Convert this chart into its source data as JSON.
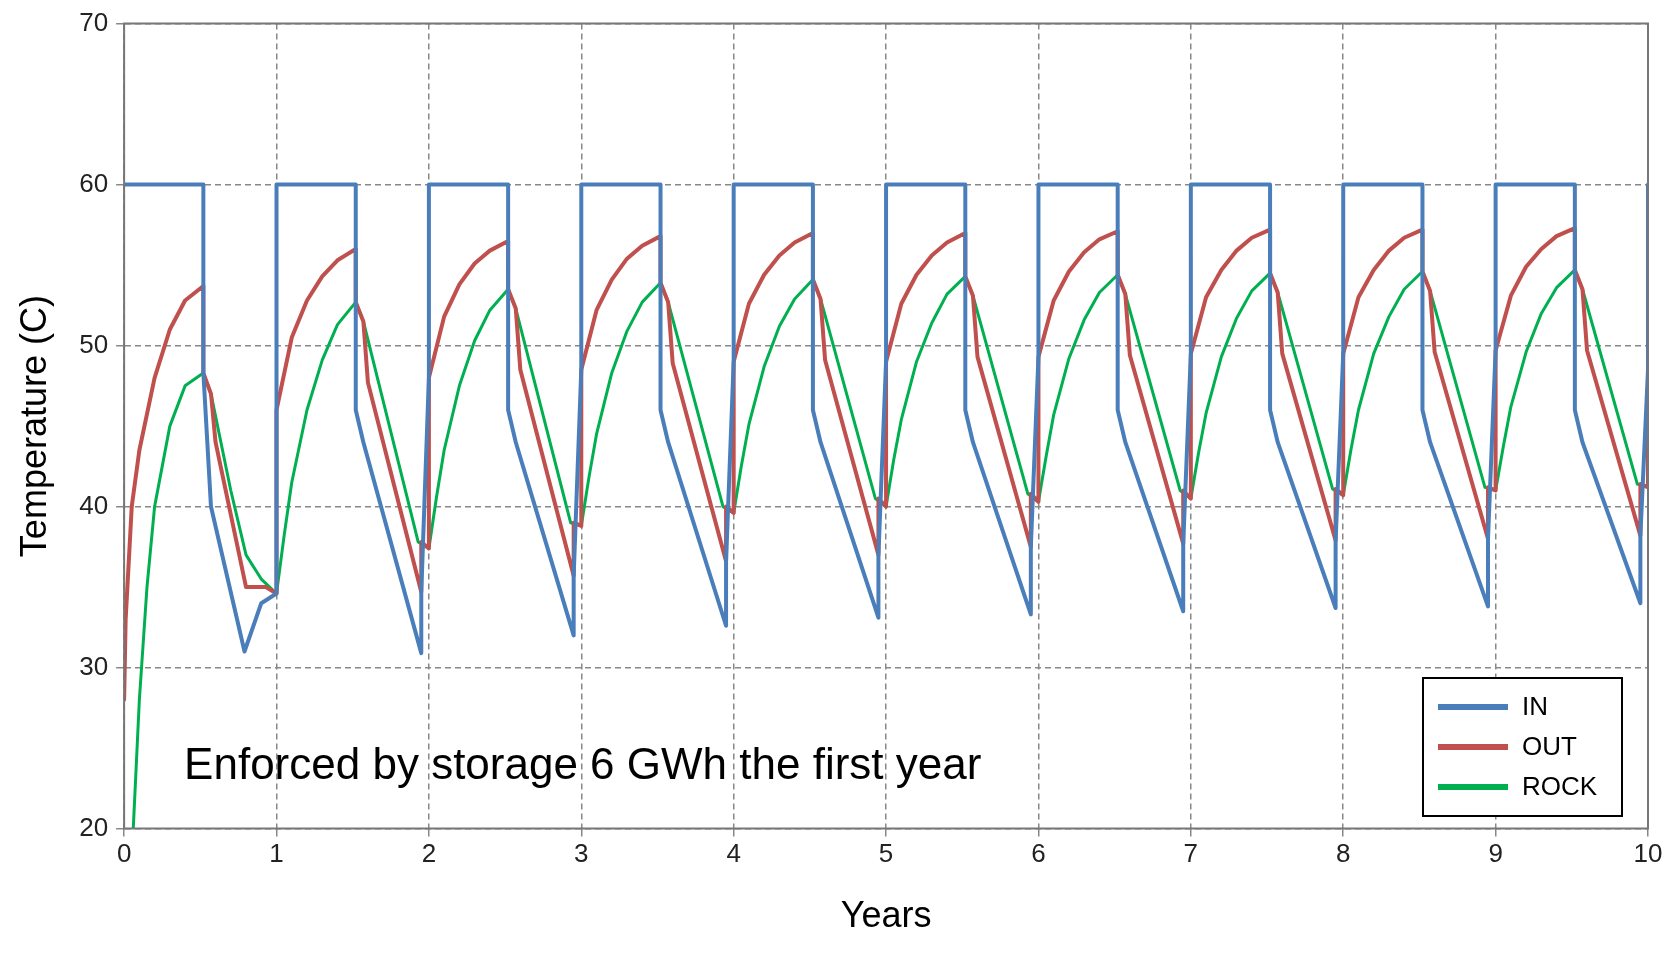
{
  "chart_data": {
    "type": "line",
    "xlabel": "Years",
    "ylabel": "Temperature (C)",
    "annotations": [
      "Enforced by storage 6 GWh the first year"
    ],
    "xlim": [
      0,
      10
    ],
    "xticks": [
      0,
      1,
      2,
      3,
      4,
      5,
      6,
      7,
      8,
      9,
      10
    ],
    "ylim": [
      20,
      70
    ],
    "yticks": [
      20,
      30,
      40,
      50,
      60,
      70
    ],
    "grid": true,
    "legend": "bottom right",
    "marker": "none",
    "series": [
      {
        "name": "IN",
        "color": "#4a7ebb",
        "x": [
          0,
          0.52,
          0.52,
          0.57,
          0.79,
          0.9,
          1,
          1,
          1.52,
          1.52,
          1.57,
          1.95,
          1.95,
          2,
          2,
          2.52,
          2.52,
          2.57,
          2.95,
          2.95,
          3,
          3,
          3.52,
          3.52,
          3.57,
          3.95,
          3.95,
          4,
          4,
          4.52,
          4.52,
          4.57,
          4.95,
          4.95,
          5,
          5,
          5.52,
          5.52,
          5.57,
          5.95,
          5.95,
          6,
          6,
          6.52,
          6.52,
          6.57,
          6.95,
          6.95,
          7,
          7,
          7.52,
          7.52,
          7.57,
          7.95,
          7.95,
          8,
          8,
          8.52,
          8.52,
          8.57,
          8.95,
          8.95,
          9,
          9,
          9.52,
          9.52,
          9.57,
          9.95,
          9.95,
          10,
          10
        ],
        "values": [
          60,
          60,
          48.3,
          40,
          31,
          34,
          34.6,
          60,
          60,
          46,
          44,
          30.9,
          34.7,
          48,
          60,
          60,
          46,
          44,
          32.0,
          35.7,
          48.5,
          60,
          60,
          46,
          44,
          32.6,
          36.6,
          49,
          60,
          60,
          46,
          44,
          33.1,
          37.0,
          49,
          60,
          60,
          46,
          44,
          33.3,
          37.5,
          49.3,
          60,
          60,
          46,
          44,
          33.5,
          37.7,
          49.5,
          60,
          60,
          46,
          44,
          33.7,
          37.9,
          49.5,
          60,
          60,
          46,
          44,
          33.8,
          38.0,
          49.7,
          60,
          60,
          46,
          44,
          34.0,
          38.2,
          48.5,
          60
        ]
      },
      {
        "name": "OUT",
        "color": "#c0504d",
        "x": [
          0,
          0.01,
          0.05,
          0.1,
          0.2,
          0.3,
          0.4,
          0.52,
          0.52,
          0.57,
          0.6,
          0.8,
          0.93,
          1,
          1,
          1.1,
          1.2,
          1.3,
          1.4,
          1.52,
          1.52,
          1.57,
          1.6,
          1.95,
          1.95,
          2,
          2,
          2.1,
          2.2,
          2.3,
          2.4,
          2.52,
          2.52,
          2.57,
          2.6,
          2.95,
          2.95,
          3,
          3,
          3.1,
          3.2,
          3.3,
          3.4,
          3.52,
          3.52,
          3.57,
          3.6,
          3.95,
          3.95,
          4,
          4,
          4.1,
          4.2,
          4.3,
          4.4,
          4.52,
          4.52,
          4.57,
          4.6,
          4.95,
          4.95,
          5,
          5,
          5.1,
          5.2,
          5.3,
          5.4,
          5.52,
          5.52,
          5.57,
          5.6,
          5.95,
          5.95,
          6,
          6,
          6.1,
          6.2,
          6.3,
          6.4,
          6.52,
          6.52,
          6.57,
          6.6,
          6.95,
          6.95,
          7,
          7,
          7.1,
          7.2,
          7.3,
          7.4,
          7.52,
          7.52,
          7.57,
          7.6,
          7.95,
          7.95,
          8,
          8,
          8.1,
          8.2,
          8.3,
          8.4,
          8.52,
          8.52,
          8.57,
          8.6,
          8.95,
          8.95,
          9,
          9,
          9.1,
          9.2,
          9.3,
          9.4,
          9.52,
          9.52,
          9.57,
          9.6,
          9.95,
          9.95,
          10,
          10
        ],
        "values": [
          28,
          33,
          40,
          43.5,
          48,
          51,
          52.8,
          53.7,
          48.3,
          47,
          44,
          35,
          35,
          34.6,
          46,
          50.5,
          52.8,
          54.3,
          55.3,
          56.0,
          52.7,
          51.5,
          47.7,
          34.7,
          37.8,
          37.4,
          48,
          51.8,
          53.8,
          55.1,
          55.9,
          56.5,
          53.5,
          52.3,
          48.5,
          35.7,
          39.0,
          38.8,
          48.5,
          52.2,
          54.1,
          55.4,
          56.2,
          56.8,
          53.9,
          52.7,
          48.9,
          36.6,
          40.0,
          39.6,
          49,
          52.6,
          54.4,
          55.6,
          56.4,
          57.0,
          54.1,
          52.9,
          49.1,
          37.0,
          40.5,
          40.0,
          49,
          52.6,
          54.4,
          55.6,
          56.4,
          57.0,
          54.3,
          53.1,
          49.3,
          37.5,
          40.8,
          40.3,
          49.3,
          52.8,
          54.6,
          55.8,
          56.6,
          57.1,
          54.4,
          53.2,
          49.4,
          37.7,
          41.0,
          40.5,
          49.5,
          53.0,
          54.7,
          55.9,
          56.7,
          57.2,
          54.5,
          53.3,
          49.5,
          37.9,
          41.1,
          40.7,
          49.5,
          53.0,
          54.7,
          55.9,
          56.7,
          57.2,
          54.6,
          53.4,
          49.6,
          38.0,
          41.2,
          41.0,
          49.7,
          53.1,
          54.9,
          56.0,
          56.8,
          57.3,
          54.7,
          53.5,
          49.7,
          38.2,
          41.4,
          41.2,
          48.5
        ]
      },
      {
        "name": "ROCK",
        "color": "#00b050",
        "x": [
          0.06,
          0.1,
          0.15,
          0.2,
          0.3,
          0.4,
          0.52,
          0.57,
          0.7,
          0.8,
          0.9,
          1,
          1.05,
          1.1,
          1.2,
          1.3,
          1.4,
          1.52,
          1.57,
          1.93,
          2,
          2.05,
          2.1,
          2.2,
          2.3,
          2.4,
          2.52,
          2.57,
          2.93,
          3,
          3.05,
          3.1,
          3.2,
          3.3,
          3.4,
          3.52,
          3.57,
          3.93,
          4,
          4.05,
          4.1,
          4.2,
          4.3,
          4.4,
          4.52,
          4.57,
          4.93,
          5,
          5.05,
          5.1,
          5.2,
          5.3,
          5.4,
          5.52,
          5.57,
          5.93,
          6,
          6.05,
          6.1,
          6.2,
          6.3,
          6.4,
          6.52,
          6.57,
          6.93,
          7,
          7.05,
          7.1,
          7.2,
          7.3,
          7.4,
          7.52,
          7.57,
          7.93,
          8,
          8.05,
          8.1,
          8.2,
          8.3,
          8.4,
          8.52,
          8.57,
          8.93,
          9,
          9.05,
          9.1,
          9.2,
          9.3,
          9.4,
          9.52,
          9.57,
          9.93,
          10
        ],
        "values": [
          20,
          28,
          35,
          40,
          45,
          47.5,
          48.3,
          47,
          41,
          37,
          35.5,
          34.6,
          38.2,
          41.5,
          46.0,
          49.1,
          51.3,
          52.7,
          51.5,
          37.8,
          37.4,
          40.6,
          43.5,
          47.5,
          50.3,
          52.2,
          53.5,
          52.3,
          39.0,
          38.8,
          41.8,
          44.5,
          48.3,
          50.9,
          52.7,
          53.9,
          52.7,
          40.0,
          39.6,
          42.5,
          45.1,
          48.7,
          51.2,
          52.9,
          54.1,
          52.9,
          40.5,
          40.0,
          42.9,
          45.4,
          49.0,
          51.4,
          53.2,
          54.3,
          53.1,
          40.8,
          40.3,
          43.1,
          45.7,
          49.2,
          51.6,
          53.3,
          54.4,
          53.2,
          41.0,
          40.5,
          43.3,
          45.8,
          49.3,
          51.7,
          53.4,
          54.5,
          53.3,
          41.1,
          40.7,
          43.5,
          46.0,
          49.5,
          51.8,
          53.5,
          54.6,
          53.4,
          41.2,
          41.0,
          43.7,
          46.2,
          49.6,
          52.0,
          53.6,
          54.7,
          53.5,
          41.4,
          41.2
        ]
      }
    ]
  }
}
